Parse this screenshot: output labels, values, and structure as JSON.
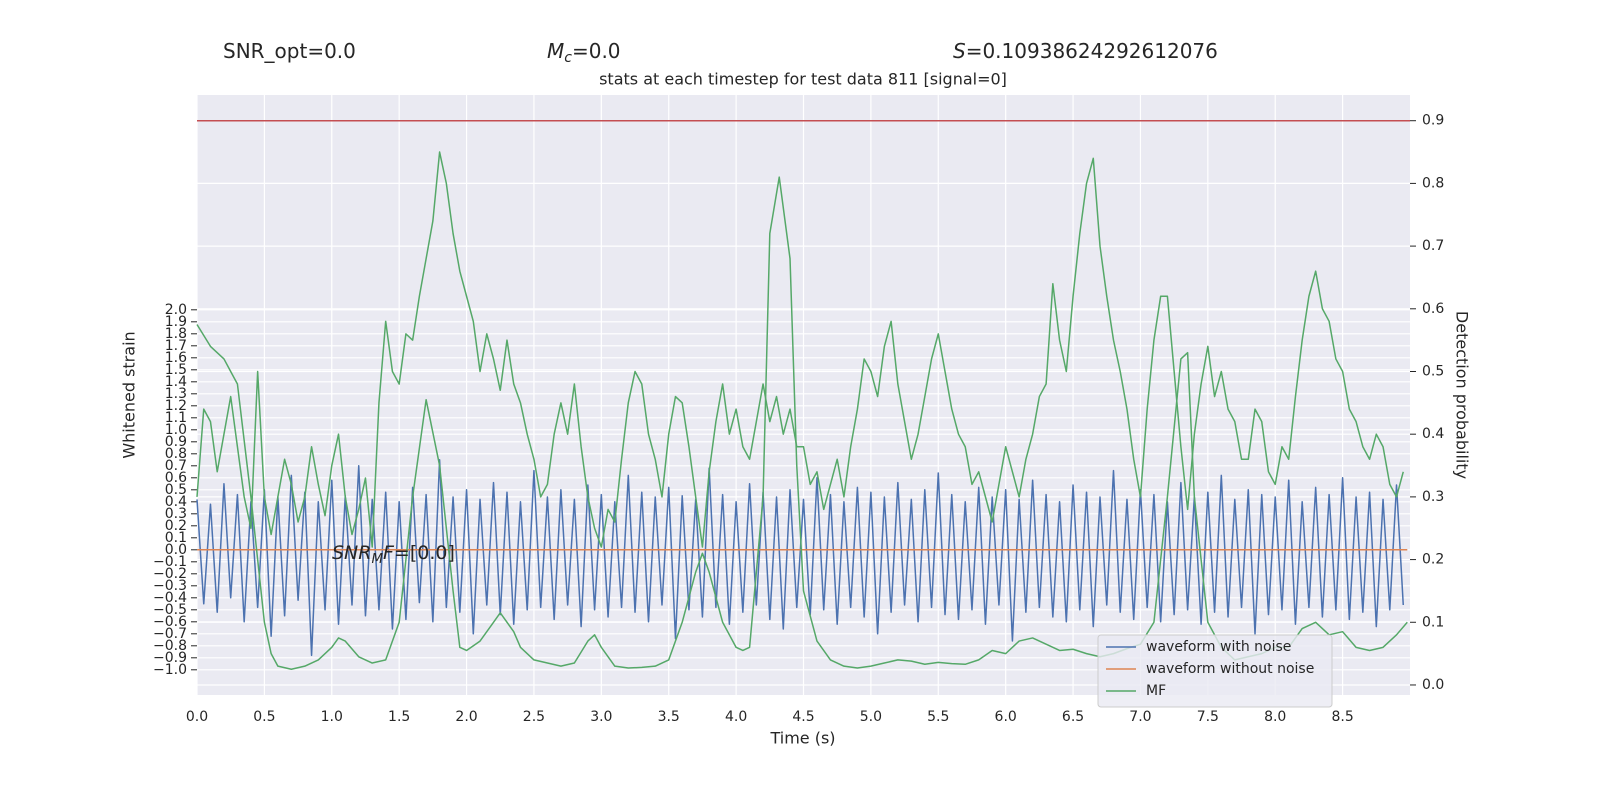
{
  "chart_data": {
    "type": "line",
    "title": "stats at each timestep for test data 811 [signal=0]",
    "header_stats": [
      [
        {
          "text": "SNR_opt=0.0"
        }
      ],
      [
        {
          "text": "M",
          "style": "italic"
        },
        {
          "text": "c",
          "style": "sub"
        },
        {
          "text": "=0.0"
        }
      ],
      [
        {
          "text": "S",
          "style": "italic"
        },
        {
          "text": "=0.10938624292612076"
        }
      ]
    ],
    "annotation": [
      {
        "text": "SNR",
        "style": "italic"
      },
      {
        "text": "M",
        "style": "sub"
      },
      {
        "text": "F",
        "style": "italic"
      },
      {
        "text": "=[0.0]"
      }
    ],
    "xlabel": "Time (s)",
    "ylabel": "Whitened strain",
    "y2label": "Detection probability",
    "xlim": [
      0,
      9.0
    ],
    "ylim": [
      -1.21,
      3.79
    ],
    "y2lim": [
      -0.016,
      0.941
    ],
    "xticks": [
      {
        "value": 0,
        "label": "0.0"
      },
      0.5,
      {
        "value": 1,
        "label": "1.0"
      },
      1.5,
      {
        "value": 2,
        "label": "2.0"
      },
      2.5,
      {
        "value": 3,
        "label": "3.0"
      },
      3.5,
      {
        "value": 4,
        "label": "4.0"
      },
      4.5,
      {
        "value": 5,
        "label": "5.0"
      },
      5.5,
      {
        "value": 6,
        "label": "6.0"
      },
      6.5,
      {
        "value": 7,
        "label": "7.0"
      },
      7.5,
      {
        "value": 8,
        "label": "8.0"
      },
      8.5
    ],
    "yticks": [
      {
        "value": -1,
        "label": "−1.0"
      },
      {
        "value": -0.9,
        "label": "−0.9"
      },
      {
        "value": -0.8,
        "label": "−0.8"
      },
      {
        "value": -0.7,
        "label": "−0.7"
      },
      {
        "value": -0.6,
        "label": "−0.6"
      },
      {
        "value": -0.5,
        "label": "−0.5"
      },
      {
        "value": -0.4,
        "label": "−0.4"
      },
      {
        "value": -0.3,
        "label": "−0.3"
      },
      {
        "value": -0.2,
        "label": "−0.2"
      },
      {
        "value": -0.1,
        "label": "−0.1"
      },
      {
        "value": 0,
        "label": "0.0"
      },
      0.1,
      0.2,
      0.3,
      0.4,
      0.5,
      0.6,
      0.7,
      0.8,
      0.9,
      {
        "value": 1,
        "label": "1.0"
      },
      1.1,
      1.2,
      1.3,
      1.4,
      1.5,
      1.6,
      1.7,
      1.8,
      1.9,
      {
        "value": 2,
        "label": "2.0"
      }
    ],
    "y2ticks": [
      {
        "value": 0,
        "label": "0.0"
      },
      0.1,
      0.2,
      0.3,
      0.4,
      0.5,
      0.6,
      0.7,
      0.8,
      0.9
    ],
    "grid": true,
    "legend": "lower right",
    "x": [
      0,
      0.05,
      0.1,
      0.15,
      0.2,
      0.25,
      0.3,
      0.35,
      0.4,
      0.45,
      0.5,
      0.55,
      0.6,
      0.65,
      0.7,
      0.75,
      0.8,
      0.85,
      0.9,
      0.95,
      1,
      1.05,
      1.1,
      1.15,
      1.2,
      1.25,
      1.3,
      1.35,
      1.4,
      1.45,
      1.5,
      1.55,
      1.6,
      1.65,
      1.7,
      1.75,
      1.8,
      1.85,
      1.9,
      1.95,
      2,
      2.05,
      2.1,
      2.15,
      2.2,
      2.25,
      2.3,
      2.35,
      2.4,
      2.45,
      2.5,
      2.55,
      2.6,
      2.65,
      2.7,
      2.75,
      2.8,
      2.85,
      2.9,
      2.95,
      3,
      3.05,
      3.1,
      3.15,
      3.2,
      3.25,
      3.3,
      3.35,
      3.4,
      3.45,
      3.5,
      3.55,
      3.6,
      3.65,
      3.7,
      3.75,
      3.8,
      3.85,
      3.9,
      3.95,
      4,
      4.05,
      4.1,
      4.15,
      4.2,
      4.25,
      4.3,
      4.35,
      4.4,
      4.45,
      4.5,
      4.55,
      4.6,
      4.65,
      4.7,
      4.75,
      4.8,
      4.85,
      4.9,
      4.95,
      5,
      5.05,
      5.1,
      5.15,
      5.2,
      5.25,
      5.3,
      5.35,
      5.4,
      5.45,
      5.5,
      5.55,
      5.6,
      5.65,
      5.7,
      5.75,
      5.8,
      5.85,
      5.9,
      5.95,
      6,
      6.05,
      6.1,
      6.15,
      6.2,
      6.25,
      6.3,
      6.35,
      6.4,
      6.45,
      6.5,
      6.55,
      6.6,
      6.65,
      6.7,
      6.75,
      6.8,
      6.85,
      6.9,
      6.95,
      7,
      7.05,
      7.1,
      7.15,
      7.2,
      7.25,
      7.3,
      7.35,
      7.4,
      7.45,
      7.5,
      7.55,
      7.6,
      7.65,
      7.7,
      7.75,
      7.8,
      7.85,
      7.9,
      7.95,
      8,
      8.05,
      8.1,
      8.15,
      8.2,
      8.25,
      8.3,
      8.35,
      8.4,
      8.45,
      8.5,
      8.55,
      8.6,
      8.65,
      8.7,
      8.75,
      8.8,
      8.85,
      8.9,
      8.95
    ],
    "series": [
      {
        "name": "waveform with noise",
        "color": "#4c72b0",
        "values": [
          0.42,
          -0.45,
          0.38,
          -0.52,
          0.55,
          -0.4,
          0.46,
          -0.6,
          0.4,
          -0.48,
          0.5,
          -0.72,
          0.44,
          -0.55,
          0.62,
          -0.42,
          0.48,
          -0.88,
          0.4,
          -0.5,
          0.58,
          -0.62,
          0.45,
          -0.46,
          0.7,
          -0.55,
          0.42,
          -0.5,
          0.48,
          -0.66,
          0.4,
          -0.58,
          0.52,
          -0.44,
          0.46,
          -0.6,
          0.75,
          -0.48,
          0.44,
          -0.52,
          0.5,
          -0.7,
          0.42,
          -0.46,
          0.56,
          -0.54,
          0.48,
          -0.62,
          0.4,
          -0.5,
          0.66,
          -0.48,
          0.44,
          -0.58,
          0.5,
          -0.46,
          0.42,
          -0.64,
          0.54,
          -0.5,
          0.46,
          -0.56,
          0.4,
          -0.48,
          0.62,
          -0.52,
          0.48,
          -0.6,
          0.44,
          -0.46,
          0.52,
          -0.74,
          0.45,
          -0.5,
          0.42,
          -0.56,
          0.68,
          -0.48,
          0.46,
          -0.62,
          0.4,
          -0.52,
          0.55,
          -0.46,
          0.48,
          -0.58,
          0.44,
          -0.66,
          0.5,
          -0.48,
          0.42,
          -0.54,
          0.6,
          -0.5,
          0.46,
          -0.62,
          0.4,
          -0.48,
          0.52,
          -0.56,
          0.48,
          -0.7,
          0.44,
          -0.52,
          0.56,
          -0.46,
          0.42,
          -0.6,
          0.5,
          -0.48,
          0.64,
          -0.54,
          0.46,
          -0.58,
          0.4,
          -0.5,
          0.52,
          -0.62,
          0.44,
          -0.46,
          0.5,
          -0.76,
          0.42,
          -0.52,
          0.58,
          -0.48,
          0.46,
          -0.56,
          0.4,
          -0.6,
          0.54,
          -0.5,
          0.48,
          -0.64,
          0.44,
          -0.46,
          0.66,
          -0.52,
          0.42,
          -0.58,
          0.5,
          -0.48,
          0.46,
          -0.6,
          0.4,
          -0.54,
          0.56,
          -0.5,
          0.44,
          -0.62,
          0.48,
          -0.52,
          0.62,
          -0.56,
          0.42,
          -0.48,
          0.5,
          -0.7,
          0.46,
          -0.54,
          0.44,
          -0.5,
          0.58,
          -0.62,
          0.4,
          -0.48,
          0.52,
          -0.56,
          0.46,
          -0.5,
          0.6,
          -0.58,
          0.44,
          -0.52,
          0.48,
          -0.64,
          0.42,
          -0.5,
          0.54,
          -0.46
        ]
      },
      {
        "name": "waveform without noise",
        "color": "#dd8452",
        "x": [
          0,
          8.98
        ],
        "values": [
          0,
          0
        ]
      },
      {
        "color": "#55a868",
        "axis": "y2",
        "values": [
          0.3,
          0.44,
          0.42,
          0.34,
          0.4,
          0.46,
          0.38,
          0.3,
          0.25,
          0.5,
          0.3,
          0.24,
          0.3,
          0.36,
          0.32,
          0.26,
          0.3,
          0.38,
          0.32,
          0.27,
          0.35,
          0.4,
          0.3,
          0.24,
          0.28,
          0.33,
          0.22,
          0.45,
          0.58,
          0.5,
          0.48,
          0.56,
          0.55,
          0.62,
          0.68,
          0.74,
          0.85,
          0.8,
          0.72,
          0.66,
          0.62,
          0.58,
          0.5,
          0.56,
          0.52,
          0.47,
          0.55,
          0.48,
          0.45,
          0.4,
          0.36,
          0.3,
          0.32,
          0.4,
          0.45,
          0.4,
          0.48,
          0.38,
          0.3,
          0.25,
          0.22,
          0.28,
          0.26,
          0.36,
          0.45,
          0.5,
          0.48,
          0.4,
          0.36,
          0.3,
          0.4,
          0.46,
          0.45,
          0.38,
          0.3,
          0.22,
          0.34,
          0.42,
          0.48,
          0.4,
          0.44,
          0.38,
          0.36,
          0.42,
          0.48,
          0.42,
          0.46,
          0.4,
          0.44,
          0.38,
          0.38,
          0.32,
          0.34,
          0.28,
          0.32,
          0.36,
          0.3,
          0.38,
          0.44,
          0.52,
          0.5,
          0.46,
          0.54,
          0.58,
          0.48,
          0.42,
          0.36,
          0.4,
          0.46,
          0.52,
          0.56,
          0.5,
          0.44,
          0.4,
          0.38,
          0.32,
          0.34,
          0.3,
          0.26,
          0.32,
          0.38,
          0.34,
          0.3,
          0.36,
          0.4,
          0.46,
          0.48,
          0.64,
          0.55,
          0.5,
          0.62,
          0.72,
          0.8,
          0.84,
          0.7,
          0.62,
          0.55,
          0.5,
          0.44,
          0.36,
          0.3,
          0.44,
          0.55,
          0.62,
          0.62,
          0.5,
          0.38,
          0.28,
          0.4,
          0.48,
          0.54,
          0.46,
          0.5,
          0.44,
          0.42,
          0.36,
          0.36,
          0.44,
          0.42,
          0.34,
          0.32,
          0.38,
          0.36,
          0.46,
          0.55,
          0.62,
          0.66,
          0.6,
          0.58,
          0.52,
          0.5,
          0.44,
          0.42,
          0.38,
          0.36,
          0.4,
          0.38,
          0.32,
          0.3,
          0.34
        ]
      },
      {
        "name": "MF",
        "color": "#55a868",
        "axis": "y2",
        "x": [
          0,
          0.1,
          0.2,
          0.25,
          0.3,
          0.4,
          0.45,
          0.5,
          0.55,
          0.6,
          0.7,
          0.8,
          0.9,
          1,
          1.05,
          1.1,
          1.2,
          1.3,
          1.4,
          1.5,
          1.6,
          1.7,
          1.8,
          1.9,
          1.95,
          2,
          2.1,
          2.2,
          2.25,
          2.35,
          2.4,
          2.5,
          2.6,
          2.7,
          2.8,
          2.9,
          2.95,
          3,
          3.1,
          3.2,
          3.3,
          3.4,
          3.5,
          3.6,
          3.7,
          3.75,
          3.8,
          3.9,
          4,
          4.05,
          4.1,
          4.2,
          4.25,
          4.32,
          4.4,
          4.45,
          4.5,
          4.6,
          4.7,
          4.8,
          4.9,
          5,
          5.1,
          5.2,
          5.3,
          5.4,
          5.5,
          5.6,
          5.7,
          5.8,
          5.9,
          6,
          6.1,
          6.2,
          6.3,
          6.4,
          6.5,
          6.6,
          6.7,
          6.8,
          6.9,
          7,
          7.1,
          7.2,
          7.3,
          7.35,
          7.4,
          7.5,
          7.6,
          7.7,
          7.8,
          7.9,
          8,
          8.1,
          8.2,
          8.3,
          8.4,
          8.5,
          8.6,
          8.7,
          8.8,
          8.9,
          8.98
        ],
        "values": [
          0.575,
          0.54,
          0.52,
          0.5,
          0.48,
          0.3,
          0.2,
          0.1,
          0.05,
          0.03,
          0.025,
          0.03,
          0.04,
          0.06,
          0.075,
          0.07,
          0.045,
          0.035,
          0.04,
          0.1,
          0.3,
          0.455,
          0.35,
          0.15,
          0.06,
          0.055,
          0.07,
          0.1,
          0.115,
          0.085,
          0.06,
          0.04,
          0.035,
          0.03,
          0.035,
          0.07,
          0.08,
          0.06,
          0.03,
          0.027,
          0.028,
          0.03,
          0.04,
          0.1,
          0.18,
          0.21,
          0.18,
          0.1,
          0.06,
          0.055,
          0.06,
          0.3,
          0.72,
          0.81,
          0.68,
          0.35,
          0.15,
          0.07,
          0.04,
          0.03,
          0.027,
          0.03,
          0.035,
          0.04,
          0.038,
          0.033,
          0.036,
          0.034,
          0.033,
          0.04,
          0.055,
          0.05,
          0.07,
          0.075,
          0.065,
          0.055,
          0.057,
          0.05,
          0.045,
          0.05,
          0.058,
          0.065,
          0.1,
          0.3,
          0.52,
          0.53,
          0.3,
          0.1,
          0.06,
          0.04,
          0.045,
          0.05,
          0.06,
          0.06,
          0.09,
          0.1,
          0.08,
          0.085,
          0.06,
          0.055,
          0.06,
          0.08,
          0.1
        ]
      }
    ],
    "hlines": [
      {
        "value": 0.9,
        "axis": "y2",
        "color": "#c44e52"
      }
    ]
  }
}
